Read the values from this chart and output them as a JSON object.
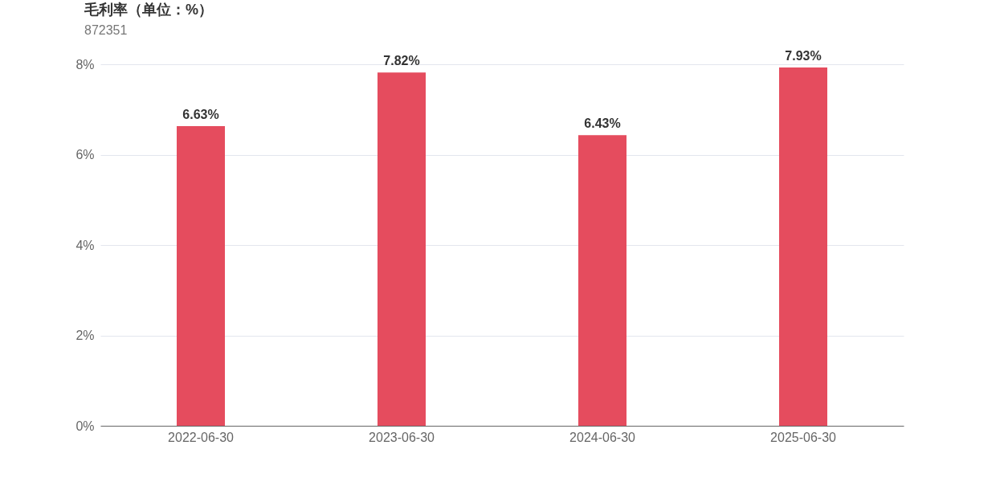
{
  "chart_data": {
    "type": "bar",
    "title": "毛利率（单位：%）",
    "subtitle": "872351",
    "categories": [
      "2022-06-30",
      "2023-06-30",
      "2024-06-30",
      "2025-06-30"
    ],
    "values": [
      6.63,
      7.82,
      6.43,
      7.93
    ],
    "value_labels": [
      "6.63%",
      "7.82%",
      "6.43%",
      "7.93%"
    ],
    "color": "#e54c5e",
    "ylim": [
      0,
      8
    ],
    "yticks": [
      {
        "value": 0,
        "label": "0%"
      },
      {
        "value": 2,
        "label": "2%"
      },
      {
        "value": 4,
        "label": "4%"
      },
      {
        "value": 6,
        "label": "6%"
      },
      {
        "value": 8,
        "label": "8%"
      }
    ],
    "grid": "y"
  }
}
